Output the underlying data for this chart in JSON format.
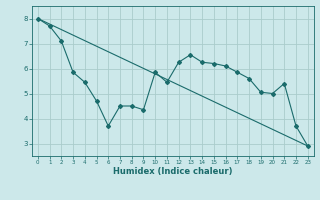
{
  "xlabel": "Humidex (Indice chaleur)",
  "ylabel": "",
  "background_color": "#cce8ea",
  "grid_color": "#aacccc",
  "line_color": "#1a6b6b",
  "xlim": [
    -0.5,
    23.5
  ],
  "ylim": [
    2.5,
    8.5
  ],
  "yticks": [
    3,
    4,
    5,
    6,
    7,
    8
  ],
  "xticks": [
    0,
    1,
    2,
    3,
    4,
    5,
    6,
    7,
    8,
    9,
    10,
    11,
    12,
    13,
    14,
    15,
    16,
    17,
    18,
    19,
    20,
    21,
    22,
    23
  ],
  "series1_x": [
    0,
    1,
    2,
    3,
    4,
    5,
    6,
    7,
    8,
    9,
    10,
    11,
    12,
    13,
    14,
    15,
    16,
    17,
    18,
    19,
    20,
    21,
    22,
    23
  ],
  "series1_y": [
    8.0,
    7.7,
    7.1,
    5.85,
    5.45,
    4.7,
    3.7,
    4.5,
    4.5,
    4.35,
    5.85,
    5.45,
    6.25,
    6.55,
    6.25,
    6.2,
    6.1,
    5.85,
    5.6,
    5.05,
    5.0,
    5.4,
    3.7,
    2.9
  ],
  "series2_x": [
    0,
    23
  ],
  "series2_y": [
    8.0,
    2.9
  ]
}
